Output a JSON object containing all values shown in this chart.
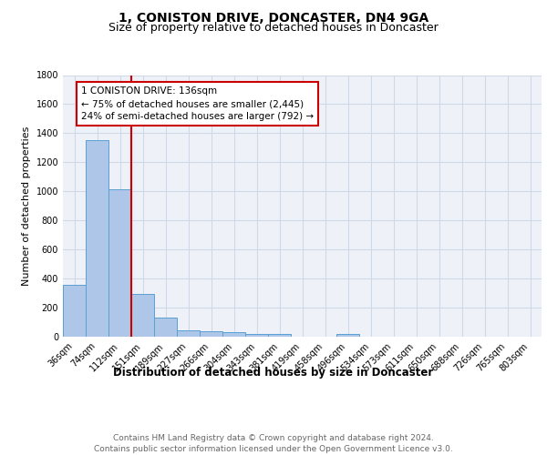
{
  "title": "1, CONISTON DRIVE, DONCASTER, DN4 9GA",
  "subtitle": "Size of property relative to detached houses in Doncaster",
  "xlabel": "Distribution of detached houses by size in Doncaster",
  "ylabel": "Number of detached properties",
  "categories": [
    "36sqm",
    "74sqm",
    "112sqm",
    "151sqm",
    "189sqm",
    "227sqm",
    "266sqm",
    "304sqm",
    "343sqm",
    "381sqm",
    "419sqm",
    "458sqm",
    "496sqm",
    "534sqm",
    "573sqm",
    "611sqm",
    "650sqm",
    "688sqm",
    "726sqm",
    "765sqm",
    "803sqm"
  ],
  "values": [
    355,
    1355,
    1015,
    295,
    130,
    42,
    38,
    32,
    20,
    17,
    0,
    0,
    20,
    0,
    0,
    0,
    0,
    0,
    0,
    0,
    0
  ],
  "bar_color": "#aec6e8",
  "bar_edge_color": "#5a9fd4",
  "grid_color": "#d0d8e8",
  "background_color": "#eef2f8",
  "annotation_line1": "1 CONISTON DRIVE: 136sqm",
  "annotation_line2": "← 75% of detached houses are smaller (2,445)",
  "annotation_line3": "24% of semi-detached houses are larger (792) →",
  "vline_color": "#cc0000",
  "annotation_box_color": "#cc0000",
  "ylim": [
    0,
    1800
  ],
  "yticks": [
    0,
    200,
    400,
    600,
    800,
    1000,
    1200,
    1400,
    1600,
    1800
  ],
  "footer_text": "Contains HM Land Registry data © Crown copyright and database right 2024.\nContains public sector information licensed under the Open Government Licence v3.0.",
  "title_fontsize": 10,
  "subtitle_fontsize": 9,
  "xlabel_fontsize": 8.5,
  "ylabel_fontsize": 8,
  "tick_fontsize": 7,
  "annotation_fontsize": 7.5,
  "footer_fontsize": 6.5
}
